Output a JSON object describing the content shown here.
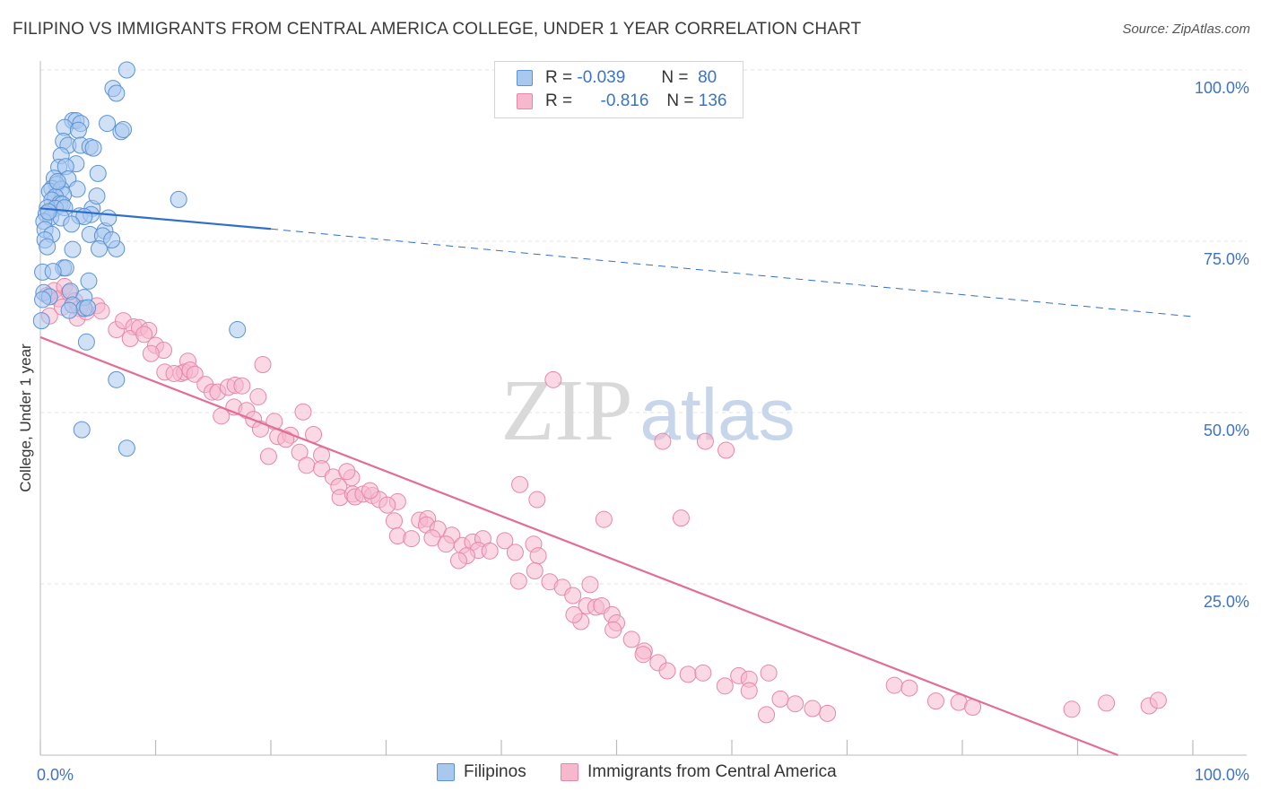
{
  "title": "FILIPINO VS IMMIGRANTS FROM CENTRAL AMERICA COLLEGE, UNDER 1 YEAR CORRELATION CHART",
  "source": "Source: ZipAtlas.com",
  "watermark": {
    "zip": "ZIP",
    "atlas": "atlas"
  },
  "legend_top": {
    "rows": [
      {
        "r_label": "R =",
        "r_value": "-0.039",
        "n_label": "N =",
        "n_value": "80"
      },
      {
        "r_label": "R =",
        "r_value": "-0.816",
        "n_label": "N =",
        "n_value": "136"
      }
    ]
  },
  "colors": {
    "filipino_fill": "#a9c8ee",
    "filipino_stroke": "#5b92d6",
    "filipino_line": "#2f6fcc",
    "central_fill": "#f5b8cd",
    "central_stroke": "#e887a8",
    "central_line": "#e26e96",
    "tick_label": "#3f73c6",
    "grid": "#e3e3e3"
  },
  "chart_data": {
    "type": "scatter",
    "xlabel": "",
    "ylabel": "College, Under 1 year",
    "xlim": [
      0,
      100
    ],
    "ylim": [
      0,
      100
    ],
    "x_tick_labels": [
      {
        "value": 0,
        "label": "0.0%"
      },
      {
        "value": 100,
        "label": "100.0%"
      }
    ],
    "y_tick_labels": [
      {
        "value": 25,
        "label": "25.0%"
      },
      {
        "value": 50,
        "label": "50.0%"
      },
      {
        "value": 75,
        "label": "75.0%"
      },
      {
        "value": 100,
        "label": "100.0%"
      }
    ],
    "grid": true,
    "legend_position": "bottom-center",
    "series": [
      {
        "name": "Filipinos",
        "r": -0.039,
        "n": 80,
        "trend": {
          "x0": 0,
          "y0": 79.8,
          "x1": 20,
          "y1": 76.8,
          "dash_x1": 100,
          "dash_y1": 64.0
        },
        "points": [
          [
            7.5,
            100
          ],
          [
            6.3,
            97.3
          ],
          [
            6.6,
            96.6
          ],
          [
            2.8,
            92.6
          ],
          [
            3.1,
            92.6
          ],
          [
            3.5,
            92.2
          ],
          [
            2.1,
            91.6
          ],
          [
            3.3,
            91.2
          ],
          [
            7.0,
            91.0
          ],
          [
            7.2,
            91.3
          ],
          [
            5.8,
            92.2
          ],
          [
            2.0,
            89.6
          ],
          [
            2.4,
            89.0
          ],
          [
            3.5,
            89.0
          ],
          [
            4.3,
            88.8
          ],
          [
            4.6,
            88.6
          ],
          [
            1.8,
            87.5
          ],
          [
            3.1,
            86.3
          ],
          [
            1.6,
            85.8
          ],
          [
            2.2,
            85.9
          ],
          [
            5.0,
            84.9
          ],
          [
            1.2,
            84.2
          ],
          [
            2.4,
            84.1
          ],
          [
            1.4,
            83.3
          ],
          [
            1.0,
            82.7
          ],
          [
            0.8,
            82.3
          ],
          [
            1.8,
            82.6
          ],
          [
            3.2,
            82.6
          ],
          [
            2.0,
            81.8
          ],
          [
            1.3,
            81.5
          ],
          [
            1.0,
            81.0
          ],
          [
            1.7,
            80.5
          ],
          [
            1.9,
            80.4
          ],
          [
            0.6,
            79.9
          ],
          [
            1.3,
            79.8
          ],
          [
            2.1,
            79.9
          ],
          [
            4.5,
            79.8
          ],
          [
            12.0,
            81.1
          ],
          [
            0.5,
            79.0
          ],
          [
            0.9,
            78.5
          ],
          [
            1.8,
            78.4
          ],
          [
            3.4,
            78.7
          ],
          [
            4.4,
            78.9
          ],
          [
            3.8,
            78.6
          ],
          [
            0.3,
            77.9
          ],
          [
            0.4,
            76.7
          ],
          [
            1.0,
            76.0
          ],
          [
            4.3,
            76.0
          ],
          [
            5.6,
            76.5
          ],
          [
            5.4,
            75.8
          ],
          [
            0.4,
            75.2
          ],
          [
            0.6,
            74.2
          ],
          [
            2.8,
            73.8
          ],
          [
            5.1,
            73.9
          ],
          [
            6.6,
            73.9
          ],
          [
            2.0,
            71.1
          ],
          [
            2.2,
            71.1
          ],
          [
            0.2,
            70.5
          ],
          [
            4.2,
            69.2
          ],
          [
            0.3,
            67.5
          ],
          [
            2.6,
            67.7
          ],
          [
            0.8,
            66.9
          ],
          [
            3.8,
            66.8
          ],
          [
            0.2,
            66.5
          ],
          [
            2.8,
            65.7
          ],
          [
            3.8,
            65.2
          ],
          [
            4.1,
            65.3
          ],
          [
            2.5,
            64.9
          ],
          [
            0.1,
            63.4
          ],
          [
            4.0,
            60.3
          ],
          [
            17.1,
            62.1
          ],
          [
            6.6,
            54.8
          ],
          [
            3.6,
            47.5
          ],
          [
            7.5,
            44.8
          ],
          [
            0.7,
            79.3
          ],
          [
            1.5,
            83.7
          ],
          [
            2.7,
            77.5
          ],
          [
            5.9,
            78.4
          ],
          [
            1.1,
            70.6
          ],
          [
            4.9,
            81.6
          ],
          [
            6.2,
            75.2
          ]
        ]
      },
      {
        "name": "Immigrants from Central America",
        "r": -0.816,
        "n": 136,
        "trend": {
          "x0": 0,
          "y0": 61.0,
          "x1": 93.5,
          "y1": 0.0
        },
        "points": [
          [
            0.6,
            67.1
          ],
          [
            1.2,
            67.8
          ],
          [
            1.6,
            66.6
          ],
          [
            2.1,
            68.4
          ],
          [
            2.5,
            67.5
          ],
          [
            3.0,
            66.3
          ],
          [
            3.4,
            65.2
          ],
          [
            0.8,
            64.1
          ],
          [
            1.9,
            65.4
          ],
          [
            3.2,
            63.8
          ],
          [
            4.0,
            64.7
          ],
          [
            4.9,
            65.6
          ],
          [
            5.3,
            64.8
          ],
          [
            6.6,
            62.1
          ],
          [
            7.2,
            63.4
          ],
          [
            8.1,
            62.5
          ],
          [
            7.8,
            60.8
          ],
          [
            8.6,
            62.4
          ],
          [
            9.4,
            62.0
          ],
          [
            9.0,
            61.4
          ],
          [
            10.0,
            59.8
          ],
          [
            10.7,
            59.1
          ],
          [
            9.6,
            58.6
          ],
          [
            12.8,
            57.5
          ],
          [
            10.8,
            55.9
          ],
          [
            12.2,
            55.7
          ],
          [
            12.5,
            55.9
          ],
          [
            13.0,
            56.2
          ],
          [
            11.6,
            55.7
          ],
          [
            13.4,
            55.6
          ],
          [
            14.3,
            54.1
          ],
          [
            14.9,
            53.0
          ],
          [
            15.4,
            53.0
          ],
          [
            16.3,
            53.7
          ],
          [
            16.9,
            54.0
          ],
          [
            17.5,
            53.9
          ],
          [
            19.3,
            57.0
          ],
          [
            18.9,
            52.3
          ],
          [
            16.8,
            50.8
          ],
          [
            15.7,
            49.5
          ],
          [
            17.9,
            50.3
          ],
          [
            18.5,
            49.0
          ],
          [
            20.3,
            48.7
          ],
          [
            19.1,
            47.6
          ],
          [
            20.6,
            46.5
          ],
          [
            21.7,
            46.7
          ],
          [
            22.8,
            50.1
          ],
          [
            23.7,
            46.8
          ],
          [
            21.3,
            46.1
          ],
          [
            19.8,
            43.6
          ],
          [
            22.5,
            44.2
          ],
          [
            24.4,
            43.8
          ],
          [
            23.1,
            42.3
          ],
          [
            24.4,
            41.8
          ],
          [
            25.4,
            40.6
          ],
          [
            27.0,
            40.5
          ],
          [
            26.6,
            41.4
          ],
          [
            25.9,
            39.2
          ],
          [
            26.0,
            37.6
          ],
          [
            27.1,
            38.1
          ],
          [
            27.3,
            37.7
          ],
          [
            28.0,
            38.1
          ],
          [
            28.8,
            37.9
          ],
          [
            29.4,
            37.3
          ],
          [
            31.0,
            37.0
          ],
          [
            28.6,
            38.6
          ],
          [
            30.1,
            36.5
          ],
          [
            30.7,
            34.2
          ],
          [
            32.9,
            34.3
          ],
          [
            33.6,
            34.5
          ],
          [
            33.5,
            33.6
          ],
          [
            34.5,
            33.0
          ],
          [
            31.0,
            32.0
          ],
          [
            32.2,
            31.6
          ],
          [
            34.0,
            31.7
          ],
          [
            35.7,
            32.1
          ],
          [
            35.2,
            30.8
          ],
          [
            36.6,
            30.6
          ],
          [
            37.5,
            31.1
          ],
          [
            38.4,
            31.6
          ],
          [
            38.0,
            29.9
          ],
          [
            37.0,
            29.1
          ],
          [
            36.3,
            28.4
          ],
          [
            39.0,
            29.8
          ],
          [
            40.3,
            31.3
          ],
          [
            41.2,
            29.6
          ],
          [
            42.8,
            30.8
          ],
          [
            43.2,
            29.1
          ],
          [
            42.9,
            26.9
          ],
          [
            41.5,
            25.4
          ],
          [
            44.2,
            25.3
          ],
          [
            45.3,
            24.5
          ],
          [
            47.7,
            24.9
          ],
          [
            46.2,
            23.3
          ],
          [
            47.4,
            21.8
          ],
          [
            48.2,
            21.6
          ],
          [
            48.7,
            21.8
          ],
          [
            46.9,
            19.5
          ],
          [
            49.6,
            20.5
          ],
          [
            50.0,
            19.3
          ],
          [
            44.5,
            54.8
          ],
          [
            54.0,
            45.8
          ],
          [
            57.7,
            45.8
          ],
          [
            59.5,
            44.5
          ],
          [
            41.6,
            39.5
          ],
          [
            43.1,
            37.3
          ],
          [
            48.9,
            34.4
          ],
          [
            55.6,
            34.6
          ],
          [
            46.3,
            20.5
          ],
          [
            49.7,
            18.3
          ],
          [
            51.3,
            16.9
          ],
          [
            52.4,
            15.2
          ],
          [
            52.3,
            14.7
          ],
          [
            53.6,
            13.5
          ],
          [
            54.4,
            12.3
          ],
          [
            56.2,
            11.8
          ],
          [
            57.5,
            12.0
          ],
          [
            59.4,
            10.1
          ],
          [
            60.6,
            11.6
          ],
          [
            61.5,
            11.1
          ],
          [
            63.2,
            12.0
          ],
          [
            61.5,
            9.4
          ],
          [
            64.2,
            8.2
          ],
          [
            65.5,
            7.5
          ],
          [
            67.0,
            6.8
          ],
          [
            68.3,
            6.1
          ],
          [
            63.0,
            5.9
          ],
          [
            74.1,
            10.2
          ],
          [
            75.4,
            9.8
          ],
          [
            77.7,
            7.9
          ],
          [
            79.7,
            7.7
          ],
          [
            80.9,
            7.0
          ],
          [
            89.5,
            6.7
          ],
          [
            92.5,
            7.6
          ],
          [
            96.2,
            7.2
          ],
          [
            97.0,
            8.0
          ]
        ]
      }
    ]
  },
  "legend_bottom": {
    "items": [
      "Filipinos",
      "Immigrants from Central America"
    ]
  }
}
